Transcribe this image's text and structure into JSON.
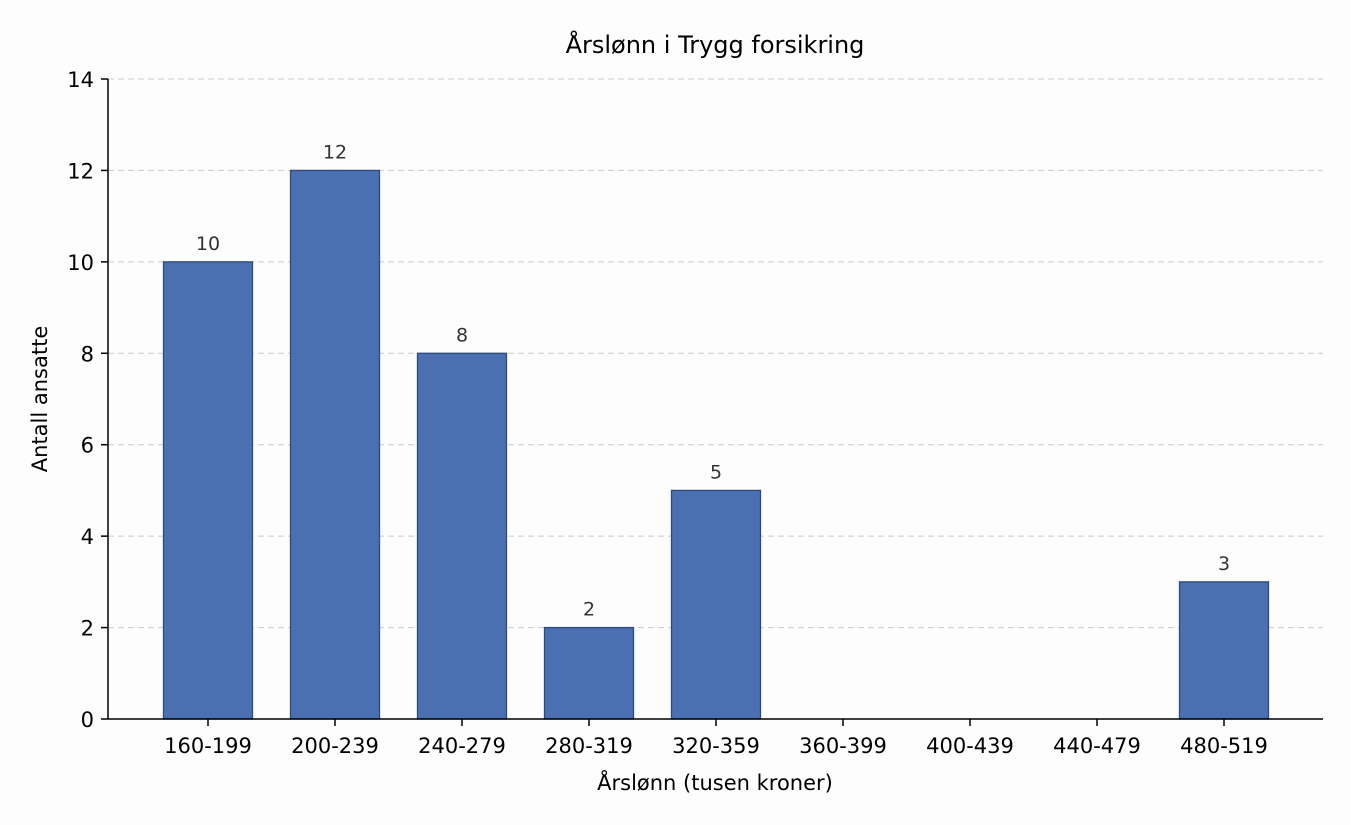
{
  "chart_data": {
    "type": "bar",
    "title": "Årslønn i Trygg forsikring",
    "xlabel": "Årslønn (tusen kroner)",
    "ylabel": "Antall ansatte",
    "categories": [
      "160-199",
      "200-239",
      "240-279",
      "280-319",
      "320-359",
      "360-399",
      "400-439",
      "440-479",
      "480-519"
    ],
    "values": [
      10,
      12,
      8,
      2,
      5,
      0,
      0,
      0,
      3
    ],
    "data_labels": [
      "10",
      "12",
      "8",
      "2",
      "5",
      "",
      "",
      "",
      "3"
    ],
    "ylim": [
      0,
      14
    ],
    "yticks": [
      0,
      2,
      4,
      6,
      8,
      10,
      12,
      14
    ],
    "grid": "y-dashed",
    "bar_color": "#4a70b2",
    "bar_edge_color": "#2d4a7a"
  }
}
